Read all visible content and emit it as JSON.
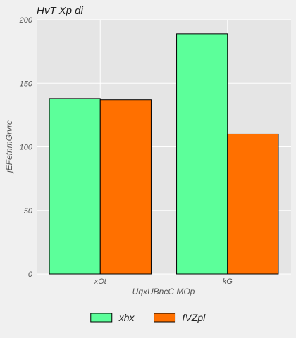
{
  "chart_data": {
    "type": "bar",
    "title": "HvT Xp di",
    "xlabel": "UqxUBncC MOp",
    "ylabel": "jEFefnmGrvrc",
    "categories": [
      "xOt",
      "kG"
    ],
    "series": [
      {
        "name": "xhx",
        "values": [
          138,
          189
        ],
        "color": "#5cff9a"
      },
      {
        "name": "fVZpl",
        "values": [
          137,
          110
        ],
        "color": "#ff7000"
      }
    ],
    "ylim": [
      0,
      200
    ],
    "yticks": [
      0,
      50,
      100,
      150,
      200
    ],
    "grid": true,
    "legend_position": "bottom-center",
    "background": "#e5e5e5",
    "edge_color": "#000000"
  }
}
